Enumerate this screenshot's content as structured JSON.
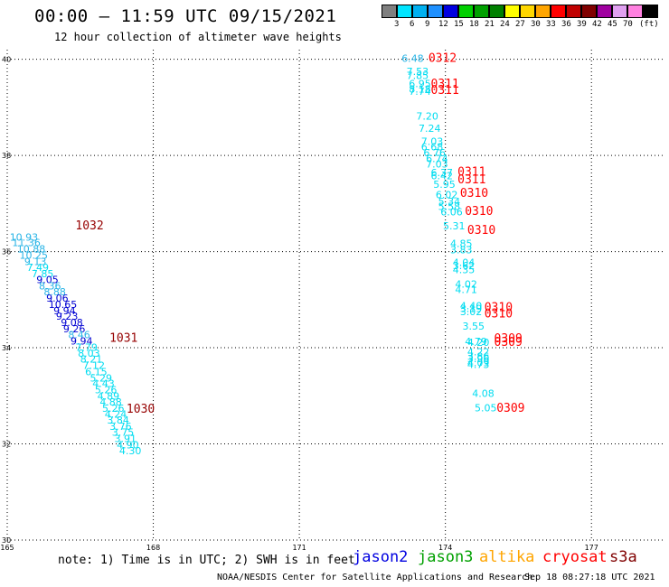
{
  "title": "00:00 – 11:59 UTC 09/15/2021",
  "subtitle": "12 hour collection of altimeter wave heights",
  "legend": {
    "unit": "(ft)",
    "bins": [
      {
        "label": "",
        "color": "#7f7f7f"
      },
      {
        "label": "3",
        "color": "#00e5ff"
      },
      {
        "label": "6",
        "color": "#00b0f0"
      },
      {
        "label": "9",
        "color": "#1e90ff"
      },
      {
        "label": "12",
        "color": "#0000e0"
      },
      {
        "label": "15",
        "color": "#00d000"
      },
      {
        "label": "18",
        "color": "#00a000"
      },
      {
        "label": "21",
        "color": "#008000"
      },
      {
        "label": "24",
        "color": "#ffff00"
      },
      {
        "label": "27",
        "color": "#ffd700"
      },
      {
        "label": "30",
        "color": "#ffa500"
      },
      {
        "label": "33",
        "color": "#ff0000"
      },
      {
        "label": "36",
        "color": "#c00000"
      },
      {
        "label": "39",
        "color": "#800000"
      },
      {
        "label": "42",
        "color": "#a000a0"
      },
      {
        "label": "45",
        "color": "#e0a0f0"
      },
      {
        "label": "70",
        "color": "#ff80e0"
      },
      {
        "label": "",
        "color": "#000000"
      }
    ]
  },
  "axes": {
    "lon_ticks": [
      "165",
      "168",
      "171",
      "174",
      "177"
    ],
    "lat_ticks": [
      "40",
      "38",
      "36",
      "34",
      "32",
      "30"
    ],
    "lon_range": [
      165,
      178.5
    ],
    "lat_range": [
      30,
      40.2
    ]
  },
  "colors": {
    "cyan": "#00dcf0",
    "lightblue": "#28b4e6",
    "blue": "#0000d2",
    "darkblue": "#000096",
    "red": "#ff0000",
    "darkred": "#960000"
  },
  "swh_points": [
    {
      "t": "10.93",
      "lon": 165.05,
      "lat": 36.23,
      "c": "lightblue"
    },
    {
      "t": "11.36",
      "lon": 165.1,
      "lat": 36.11,
      "c": "lightblue"
    },
    {
      "t": "10.88",
      "lon": 165.2,
      "lat": 35.98,
      "c": "lightblue"
    },
    {
      "t": "10.25",
      "lon": 165.25,
      "lat": 35.85,
      "c": "lightblue"
    },
    {
      "t": "9.13",
      "lon": 165.35,
      "lat": 35.72,
      "c": "lightblue"
    },
    {
      "t": "7.49",
      "lon": 165.4,
      "lat": 35.6,
      "c": "cyan"
    },
    {
      "t": "7.85",
      "lon": 165.5,
      "lat": 35.47,
      "c": "cyan"
    },
    {
      "t": "9.05",
      "lon": 165.6,
      "lat": 35.34,
      "c": "blue"
    },
    {
      "t": "8.36",
      "lon": 165.65,
      "lat": 35.21,
      "c": "lightblue"
    },
    {
      "t": "8.88",
      "lon": 165.75,
      "lat": 35.09,
      "c": "lightblue"
    },
    {
      "t": "9.06",
      "lon": 165.8,
      "lat": 34.96,
      "c": "blue"
    },
    {
      "t": "10.65",
      "lon": 165.85,
      "lat": 34.83,
      "c": "blue"
    },
    {
      "t": "9.94",
      "lon": 165.95,
      "lat": 34.7,
      "c": "blue"
    },
    {
      "t": "9.23",
      "lon": 166.0,
      "lat": 34.58,
      "c": "blue"
    },
    {
      "t": "9.08",
      "lon": 166.1,
      "lat": 34.45,
      "c": "blue"
    },
    {
      "t": "9.26",
      "lon": 166.15,
      "lat": 34.32,
      "c": "blue"
    },
    {
      "t": "8.46",
      "lon": 166.25,
      "lat": 34.2,
      "c": "lightblue"
    },
    {
      "t": "9.94",
      "lon": 166.3,
      "lat": 34.07,
      "c": "blue"
    },
    {
      "t": "7.79",
      "lon": 166.4,
      "lat": 33.94,
      "c": "cyan"
    },
    {
      "t": "8.03",
      "lon": 166.45,
      "lat": 33.81,
      "c": "cyan"
    },
    {
      "t": "8.21",
      "lon": 166.5,
      "lat": 33.69,
      "c": "cyan"
    },
    {
      "t": "7.12",
      "lon": 166.55,
      "lat": 33.56,
      "c": "cyan"
    },
    {
      "t": "6.15",
      "lon": 166.6,
      "lat": 33.43,
      "c": "cyan"
    },
    {
      "t": "5.29",
      "lon": 166.7,
      "lat": 33.3,
      "c": "cyan"
    },
    {
      "t": "4.43",
      "lon": 166.75,
      "lat": 33.18,
      "c": "cyan"
    },
    {
      "t": "5.26",
      "lon": 166.8,
      "lat": 33.05,
      "c": "cyan"
    },
    {
      "t": "4.89",
      "lon": 166.85,
      "lat": 32.92,
      "c": "cyan"
    },
    {
      "t": "4.88",
      "lon": 166.9,
      "lat": 32.8,
      "c": "cyan"
    },
    {
      "t": "5.26",
      "lon": 166.95,
      "lat": 32.67,
      "c": "cyan"
    },
    {
      "t": "4.24",
      "lon": 167.0,
      "lat": 32.55,
      "c": "cyan"
    },
    {
      "t": "3.84",
      "lon": 167.05,
      "lat": 32.42,
      "c": "cyan"
    },
    {
      "t": "3.76",
      "lon": 167.1,
      "lat": 32.29,
      "c": "cyan"
    },
    {
      "t": "3.75",
      "lon": 167.15,
      "lat": 32.17,
      "c": "cyan"
    },
    {
      "t": "3.91",
      "lon": 167.2,
      "lat": 32.04,
      "c": "cyan"
    },
    {
      "t": "4.90",
      "lon": 167.25,
      "lat": 31.91,
      "c": "cyan"
    },
    {
      "t": "4.30",
      "lon": 167.3,
      "lat": 31.78,
      "c": "cyan"
    },
    {
      "t": "6.48",
      "lon": 173.1,
      "lat": 39.95,
      "c": "lightblue"
    },
    {
      "t": "7.53",
      "lon": 173.2,
      "lat": 39.67,
      "c": "cyan"
    },
    {
      "t": "7.85",
      "lon": 173.2,
      "lat": 39.59,
      "c": "cyan"
    },
    {
      "t": "6.95",
      "lon": 173.25,
      "lat": 39.42,
      "c": "cyan"
    },
    {
      "t": "8.18",
      "lon": 173.25,
      "lat": 39.31,
      "c": "cyan"
    },
    {
      "t": "7.74",
      "lon": 173.25,
      "lat": 39.26,
      "c": "cyan"
    },
    {
      "t": "7.20",
      "lon": 173.4,
      "lat": 38.74,
      "c": "cyan"
    },
    {
      "t": "7.24",
      "lon": 173.45,
      "lat": 38.49,
      "c": "cyan"
    },
    {
      "t": "7.03",
      "lon": 173.5,
      "lat": 38.22,
      "c": "cyan"
    },
    {
      "t": "6.68",
      "lon": 173.5,
      "lat": 38.11,
      "c": "cyan"
    },
    {
      "t": "6.76",
      "lon": 173.55,
      "lat": 37.98,
      "c": "cyan"
    },
    {
      "t": "6.74",
      "lon": 173.6,
      "lat": 37.86,
      "c": "cyan"
    },
    {
      "t": "7.03",
      "lon": 173.6,
      "lat": 37.75,
      "c": "cyan"
    },
    {
      "t": "6.37",
      "lon": 173.7,
      "lat": 37.57,
      "c": "cyan"
    },
    {
      "t": "6.42",
      "lon": 173.7,
      "lat": 37.5,
      "c": "cyan"
    },
    {
      "t": "5.95",
      "lon": 173.75,
      "lat": 37.33,
      "c": "cyan"
    },
    {
      "t": "6.02",
      "lon": 173.8,
      "lat": 37.11,
      "c": "cyan"
    },
    {
      "t": "5.34",
      "lon": 173.85,
      "lat": 36.97,
      "c": "cyan"
    },
    {
      "t": "5.58",
      "lon": 173.85,
      "lat": 36.87,
      "c": "cyan"
    },
    {
      "t": "6.06",
      "lon": 173.9,
      "lat": 36.75,
      "c": "cyan"
    },
    {
      "t": "5.31",
      "lon": 173.95,
      "lat": 36.46,
      "c": "cyan"
    },
    {
      "t": "4.85",
      "lon": 174.1,
      "lat": 36.1,
      "c": "cyan"
    },
    {
      "t": "3.83",
      "lon": 174.1,
      "lat": 35.96,
      "c": "cyan"
    },
    {
      "t": "4.04",
      "lon": 174.15,
      "lat": 35.7,
      "c": "cyan"
    },
    {
      "t": "3.62",
      "lon": 174.15,
      "lat": 35.64,
      "c": "cyan"
    },
    {
      "t": "4.35",
      "lon": 174.15,
      "lat": 35.55,
      "c": "cyan"
    },
    {
      "t": "4.02",
      "lon": 174.2,
      "lat": 35.25,
      "c": "cyan"
    },
    {
      "t": "4.71",
      "lon": 174.2,
      "lat": 35.14,
      "c": "cyan"
    },
    {
      "t": "4.40",
      "lon": 174.3,
      "lat": 34.8,
      "c": "cyan"
    },
    {
      "t": "3.19",
      "lon": 174.3,
      "lat": 34.74,
      "c": "cyan"
    },
    {
      "t": "3.02",
      "lon": 174.3,
      "lat": 34.68,
      "c": "cyan"
    },
    {
      "t": "3.55",
      "lon": 174.35,
      "lat": 34.38,
      "c": "cyan"
    },
    {
      "t": "4.79",
      "lon": 174.4,
      "lat": 34.06,
      "c": "cyan"
    },
    {
      "t": "4.20",
      "lon": 174.45,
      "lat": 34.04,
      "c": "cyan"
    },
    {
      "t": "4.22",
      "lon": 174.45,
      "lat": 33.84,
      "c": "cyan"
    },
    {
      "t": "3.86",
      "lon": 174.45,
      "lat": 33.75,
      "c": "cyan"
    },
    {
      "t": "3.96",
      "lon": 174.45,
      "lat": 33.7,
      "c": "cyan"
    },
    {
      "t": "4.09",
      "lon": 174.45,
      "lat": 33.62,
      "c": "cyan"
    },
    {
      "t": "4.73",
      "lon": 174.45,
      "lat": 33.58,
      "c": "cyan"
    },
    {
      "t": "4.08",
      "lon": 174.55,
      "lat": 32.98,
      "c": "cyan"
    },
    {
      "t": "5.05",
      "lon": 174.6,
      "lat": 32.68,
      "c": "cyan"
    }
  ],
  "tags": [
    {
      "t": "0312",
      "lon": 173.65,
      "lat": 39.95,
      "c": "red"
    },
    {
      "t": "0311",
      "lon": 173.7,
      "lat": 39.41,
      "c": "red"
    },
    {
      "t": "0311",
      "lon": 173.7,
      "lat": 39.28,
      "c": "red"
    },
    {
      "t": "0311",
      "lon": 174.25,
      "lat": 37.58,
      "c": "red"
    },
    {
      "t": "0311",
      "lon": 174.25,
      "lat": 37.42,
      "c": "red"
    },
    {
      "t": "0310",
      "lon": 174.3,
      "lat": 37.14,
      "c": "red"
    },
    {
      "t": "0310",
      "lon": 174.4,
      "lat": 36.76,
      "c": "red"
    },
    {
      "t": "0310",
      "lon": 174.45,
      "lat": 36.37,
      "c": "red"
    },
    {
      "t": "0310",
      "lon": 174.8,
      "lat": 34.76,
      "c": "red"
    },
    {
      "t": "0310",
      "lon": 174.8,
      "lat": 34.63,
      "c": "red"
    },
    {
      "t": "0309",
      "lon": 175.0,
      "lat": 34.11,
      "c": "red"
    },
    {
      "t": "0309",
      "lon": 175.0,
      "lat": 34.04,
      "c": "red"
    },
    {
      "t": "0309",
      "lon": 175.05,
      "lat": 32.67,
      "c": "red"
    },
    {
      "t": "1032",
      "lon": 166.4,
      "lat": 36.46,
      "c": "darkred"
    },
    {
      "t": "1031",
      "lon": 167.1,
      "lat": 34.12,
      "c": "darkred"
    },
    {
      "t": "1030",
      "lon": 167.45,
      "lat": 32.65,
      "c": "darkred"
    }
  ],
  "footer": {
    "note": "note: 1) Time is in UTC; 2) SWH is in feet",
    "missions": [
      {
        "name": "jason2",
        "color": "#0000e0"
      },
      {
        "name": "jason3",
        "color": "#00a000"
      },
      {
        "name": "altika",
        "color": "#ffa500"
      },
      {
        "name": "cryosat",
        "color": "#ff0000"
      },
      {
        "name": "s3a",
        "color": "#800000"
      }
    ],
    "credit": "NOAA/NESDIS Center for Satellite Applications and Research",
    "timestamp": "Sep 18 08:27:18 UTC 2021"
  }
}
